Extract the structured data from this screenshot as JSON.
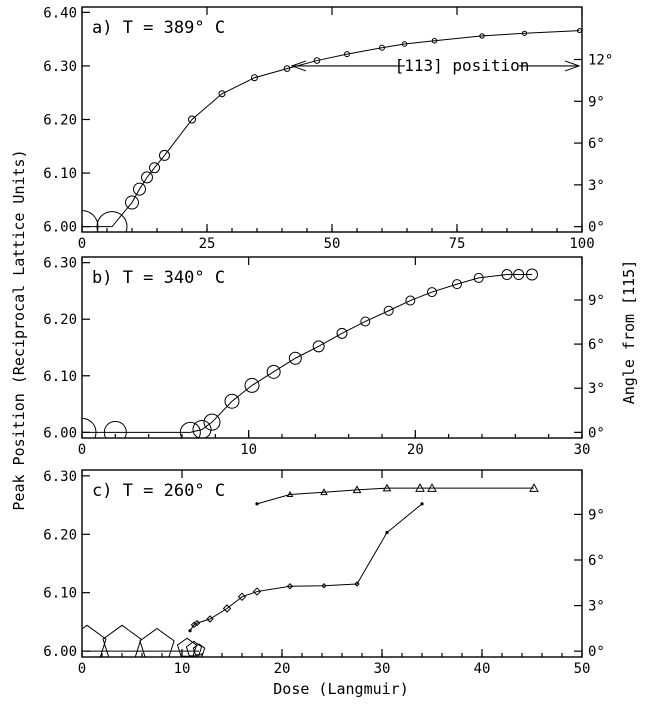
{
  "chart_data": {
    "type": "line",
    "ylabel": "Peak Position (Reciprocal Lattice Units)",
    "y2label": "Angle from [115]",
    "xlabel": "Dose (Langmuir)",
    "panels": [
      {
        "label": "a) T = 389° C",
        "xlim": [
          0,
          100
        ],
        "xticks": [
          0,
          25,
          50,
          75,
          100
        ],
        "ylim": [
          5.99,
          6.41
        ],
        "yticks": [
          6.0,
          6.1,
          6.2,
          6.3,
          6.4
        ],
        "y2ticks": [
          "0°",
          "3°",
          "6°",
          "9°",
          "12°"
        ],
        "y2tick_values": [
          6.0,
          6.078,
          6.156,
          6.234,
          6.312
        ],
        "annotation": "[113] position",
        "annotation_y": 6.3,
        "series": [
          {
            "marker": "circle",
            "x": [
              0,
              6,
              10,
              11.5,
              13,
              14.5,
              16.5,
              22,
              28,
              34.5,
              41,
              47,
              53,
              60,
              64.5,
              70.5,
              80,
              88.5,
              99.5
            ],
            "y": [
              6.0,
              6.0,
              6.045,
              6.07,
              6.092,
              6.11,
              6.133,
              6.2,
              6.248,
              6.278,
              6.295,
              6.31,
              6.322,
              6.334,
              6.341,
              6.347,
              6.356,
              6.361,
              6.366
            ],
            "size": [
              16,
              15,
              6.5,
              6.0,
              5.5,
              5.0,
              5.0,
              3.5,
              3.0,
              3.0,
              2.8,
              2.8,
              2.5,
              2.5,
              2.3,
              2.3,
              2.2,
              2.1,
              2.0
            ]
          }
        ]
      },
      {
        "label": "b) T = 340° C",
        "xlim": [
          0,
          30
        ],
        "xticks": [
          0,
          10,
          20,
          30
        ],
        "ylim": [
          5.99,
          6.31
        ],
        "yticks": [
          6.0,
          6.1,
          6.2,
          6.3
        ],
        "y2ticks": [
          "0°",
          "3°",
          "6°",
          "9°"
        ],
        "y2tick_values": [
          6.0,
          6.078,
          6.156,
          6.234
        ],
        "series": [
          {
            "marker": "circle",
            "x": [
              0,
              2,
              6.5,
              7.2,
              7.8,
              9,
              10.2,
              11.5,
              12.8,
              14.2,
              15.6,
              17,
              18.4,
              19.7,
              21,
              22.5,
              23.8,
              25.5,
              26.2,
              27
            ],
            "y": [
              6.0,
              6.0,
              6.0,
              6.005,
              6.018,
              6.055,
              6.083,
              6.107,
              6.131,
              6.152,
              6.175,
              6.196,
              6.215,
              6.233,
              6.248,
              6.262,
              6.273,
              6.279,
              6.279,
              6.279
            ],
            "size": [
              14,
              11,
              10,
              9,
              8,
              7,
              7,
              6.5,
              6,
              5.5,
              5,
              4.5,
              4.5,
              4.5,
              4.5,
              4.5,
              4.5,
              5,
              5,
              5.5
            ]
          }
        ]
      },
      {
        "label": "c) T = 260° C",
        "xlim": [
          0,
          50
        ],
        "xticks": [
          0,
          10,
          20,
          30,
          40,
          50
        ],
        "ylim": [
          5.99,
          6.31
        ],
        "yticks": [
          6.0,
          6.1,
          6.2,
          6.3
        ],
        "y2ticks": [
          "0°",
          "3°",
          "6°",
          "9°"
        ],
        "y2tick_values": [
          6.0,
          6.078,
          6.156,
          6.234
        ],
        "series": [
          {
            "marker": "pentagon",
            "x": [
              0.5,
              4,
              7.5,
              10.5,
              11.2,
              11.7
            ],
            "y": [
              6.01,
              6.01,
              6.008,
              6.005,
              6.003,
              6.002
            ],
            "size": [
              20,
              20,
              18,
              10,
              8,
              6
            ]
          },
          {
            "marker": "diamond",
            "x": [
              10.8,
              11.2,
              11.5,
              12.8,
              14.5,
              16,
              17.5,
              20.8,
              24.2,
              27.5,
              30.5,
              34
            ],
            "y": [
              6.035,
              6.045,
              6.048,
              6.055,
              6.073,
              6.093,
              6.102,
              6.111,
              6.112,
              6.115,
              6.203,
              6.252
            ],
            "size": [
              1.5,
              2.5,
              2.5,
              3,
              3.5,
              3.5,
              3.5,
              2.5,
              2,
              2,
              1.5,
              1.5
            ]
          },
          {
            "marker": "triangle",
            "x": [
              17.5,
              20.8,
              24.2,
              27.5,
              30.5,
              33.8,
              35,
              45.2
            ],
            "y": [
              6.252,
              6.268,
              6.272,
              6.276,
              6.279,
              6.279,
              6.279,
              6.279
            ],
            "size": [
              1.5,
              2.5,
              3,
              3.5,
              3.5,
              4,
              4,
              4
            ]
          }
        ]
      }
    ]
  }
}
